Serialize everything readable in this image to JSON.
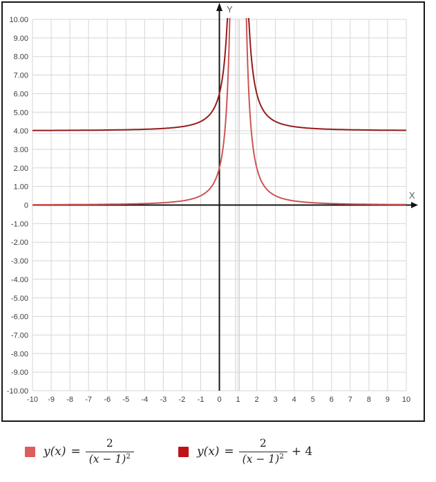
{
  "page": {
    "background": "#ffffff"
  },
  "panel": {
    "border_color": "#161616"
  },
  "axis_labels": {
    "x": "X",
    "y": "Y"
  },
  "colors": {
    "grid": "#d5d5d5",
    "asymptote_artifact": "#cdcdcd",
    "axis": "#141414",
    "tick_text": "#3c3c3c",
    "axis_letter": "#565b66",
    "curve1": "#cd5353",
    "curve2": "#951a1a",
    "legend_swatch1": "#dd5c5c",
    "legend_swatch2": "#bf1217"
  },
  "ticks": {
    "x": [
      {
        "value": -10,
        "label": "-10"
      },
      {
        "value": -9,
        "label": "-9"
      },
      {
        "value": -8,
        "label": "-8"
      },
      {
        "value": -7,
        "label": "-7"
      },
      {
        "value": -6,
        "label": "-6"
      },
      {
        "value": -5,
        "label": "-5"
      },
      {
        "value": -4,
        "label": "-4"
      },
      {
        "value": -3,
        "label": "-3"
      },
      {
        "value": -2,
        "label": "-2"
      },
      {
        "value": -1,
        "label": "-1"
      },
      {
        "value": 0,
        "label": "0"
      },
      {
        "value": 1,
        "label": "1"
      },
      {
        "value": 2,
        "label": "2"
      },
      {
        "value": 3,
        "label": "3"
      },
      {
        "value": 4,
        "label": "4"
      },
      {
        "value": 5,
        "label": "5"
      },
      {
        "value": 6,
        "label": "6"
      },
      {
        "value": 7,
        "label": "7"
      },
      {
        "value": 8,
        "label": "8"
      },
      {
        "value": 9,
        "label": "9"
      },
      {
        "value": 10,
        "label": "10"
      }
    ],
    "y": [
      {
        "value": 10,
        "label": "10.00"
      },
      {
        "value": 9,
        "label": "9.00"
      },
      {
        "value": 8,
        "label": "8.00"
      },
      {
        "value": 7,
        "label": "7.00"
      },
      {
        "value": 6,
        "label": "6.00"
      },
      {
        "value": 5,
        "label": "5.00"
      },
      {
        "value": 4,
        "label": "4.00"
      },
      {
        "value": 3,
        "label": "3.00"
      },
      {
        "value": 2,
        "label": "2.00"
      },
      {
        "value": 1,
        "label": "1.00"
      },
      {
        "value": 0,
        "label": "0"
      },
      {
        "value": -1,
        "label": "-1.00"
      },
      {
        "value": -2,
        "label": "-2.00"
      },
      {
        "value": -3,
        "label": "-3.00"
      },
      {
        "value": -4,
        "label": "-4.00"
      },
      {
        "value": -5,
        "label": "-5.00"
      },
      {
        "value": -6,
        "label": "-6.00"
      },
      {
        "value": -7,
        "label": "-7.00"
      },
      {
        "value": -8,
        "label": "-8.00"
      },
      {
        "value": -9,
        "label": "-9.00"
      },
      {
        "value": -10,
        "label": "-10.00"
      }
    ]
  },
  "chart_data": {
    "type": "line",
    "title": "",
    "xlabel": "X",
    "ylabel": "Y",
    "xlim": [
      -10,
      10
    ],
    "ylim": [
      -10,
      10
    ],
    "grid": true,
    "grid_step": 1,
    "legend_position": "bottom",
    "series": [
      {
        "name": "y(x) = 2/(x-1)^2",
        "expression": "2/(x-1)^2",
        "a": 2,
        "h": 1,
        "k": 0,
        "color": "#cd5353",
        "vertical_asymptote_x": 1,
        "horizontal_asymptote_y": 0
      },
      {
        "name": "y(x) = 2/(x-1)^2 + 4",
        "expression": "2/(x-1)^2 + 4",
        "a": 2,
        "h": 1,
        "k": 4,
        "color": "#951a1a",
        "vertical_asymptote_x": 1,
        "horizontal_asymptote_y": 4
      }
    ]
  },
  "legend": {
    "items": [
      {
        "color": "#dd5c5c",
        "lhs": "y(x)",
        "eq": "=",
        "num": "2",
        "den_base": "(x − 1)",
        "den_exp": "2",
        "suffix": ""
      },
      {
        "color": "#bf1217",
        "lhs": "y(x)",
        "eq": "=",
        "num": "2",
        "den_base": "(x − 1)",
        "den_exp": "2",
        "suffix": "+ 4"
      }
    ]
  }
}
